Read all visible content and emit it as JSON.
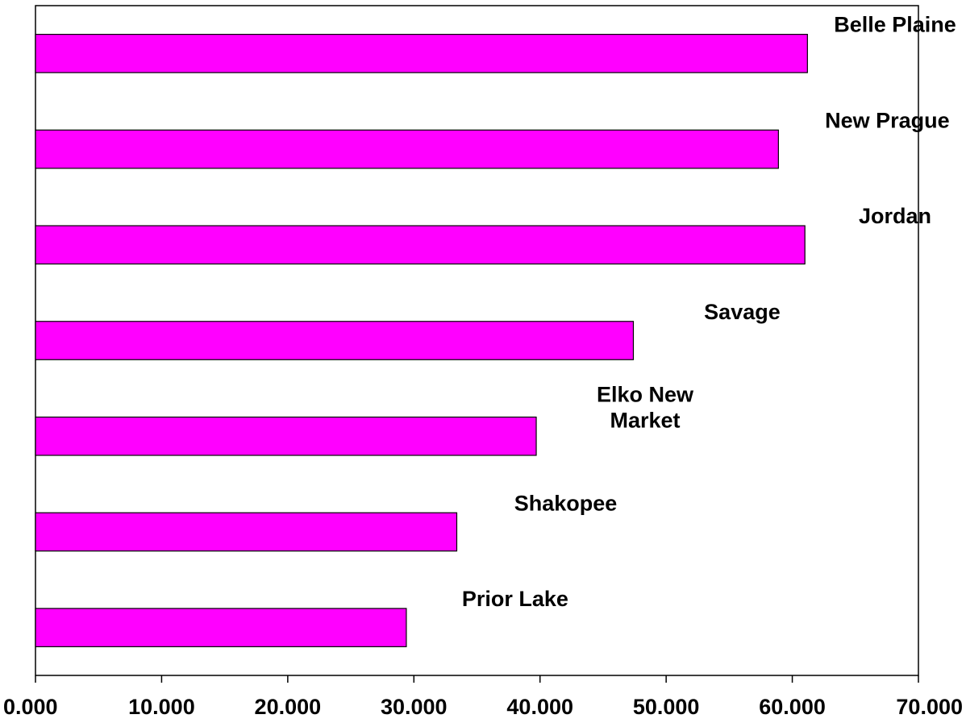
{
  "chart_data": {
    "type": "bar",
    "orientation": "horizontal",
    "categories": [
      "Belle Plaine",
      "New Prague",
      "Jordan",
      "Savage",
      "Elko New Market",
      "Shakopee",
      "Prior Lake"
    ],
    "category_label_lines": [
      [
        "Belle Plaine"
      ],
      [
        "New Prague"
      ],
      [
        "Jordan"
      ],
      [
        "Savage"
      ],
      [
        "Elko New",
        "Market"
      ],
      [
        "Shakopee"
      ],
      [
        "Prior Lake"
      ]
    ],
    "values": [
      61.2,
      58.9,
      61.0,
      47.4,
      39.7,
      33.4,
      29.4
    ],
    "xlim": [
      0,
      70
    ],
    "x_ticks": [
      0,
      10,
      20,
      30,
      40,
      50,
      60,
      70
    ],
    "x_tick_labels": [
      "0.000",
      "10.000",
      "20.000",
      "30.000",
      "40.000",
      "50.000",
      "60.000",
      "70.000"
    ],
    "title": "",
    "xlabel": "",
    "ylabel": "",
    "grid": false,
    "legend": "none",
    "bar_color": "#FF00FF",
    "bar_edge_color": "#000000"
  }
}
